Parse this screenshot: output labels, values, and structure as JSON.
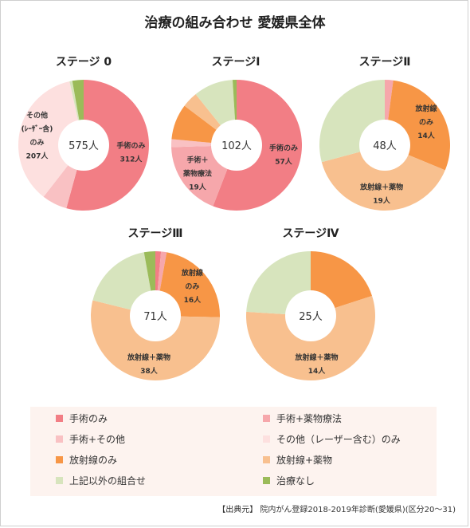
{
  "title": "治療の組み合わせ 愛媛県全体",
  "source": "【出典元】 院内がん登録2018-2019年診断(愛媛県)(区分20～31)",
  "legend": [
    {
      "label": "手術のみ",
      "color": "#f27e85"
    },
    {
      "label": "手術+薬物療法",
      "color": "#f6a7ab"
    },
    {
      "label": "手術+その他",
      "color": "#f9c1c3"
    },
    {
      "label": "その他（レーザー含む）のみ",
      "color": "#fde0df"
    },
    {
      "label": "放射線のみ",
      "color": "#f79646"
    },
    {
      "label": "放射線+薬物",
      "color": "#f8c08f"
    },
    {
      "label": "上記以外の組合せ",
      "color": "#d7e4bd"
    },
    {
      "label": "治療なし",
      "color": "#9bbb59"
    }
  ],
  "chart_data": [
    {
      "type": "pie",
      "title": "ステージ 0",
      "center_label": "575人",
      "slices": [
        {
          "category": "手術のみ",
          "value": 312,
          "label": [
            "手術のみ",
            "312人"
          ]
        },
        {
          "category": "手術+その他",
          "value": 36
        },
        {
          "category": "その他（レーザー含む）のみ",
          "value": 207,
          "label": [
            "その他",
            "(ﾚｰｻﾞｰ含)",
            "のみ",
            "207人"
          ]
        },
        {
          "category": "上記以外の組合せ",
          "value": 4
        },
        {
          "category": "治療なし",
          "value": 16
        }
      ]
    },
    {
      "type": "pie",
      "title": "ステージⅠ",
      "center_label": "102人",
      "slices": [
        {
          "category": "手術のみ",
          "value": 57,
          "label": [
            "手術のみ",
            "57人"
          ]
        },
        {
          "category": "手術+薬物療法",
          "value": 19,
          "label": [
            "手術＋",
            "薬物療法",
            "19人"
          ]
        },
        {
          "category": "手術+その他",
          "value": 2
        },
        {
          "category": "放射線のみ",
          "value": 9
        },
        {
          "category": "放射線+薬物",
          "value": 4
        },
        {
          "category": "上記以外の組合せ",
          "value": 10
        },
        {
          "category": "治療なし",
          "value": 1
        }
      ]
    },
    {
      "type": "pie",
      "title": "ステージⅡ",
      "center_label": "48人",
      "slices": [
        {
          "category": "手術+薬物療法",
          "value": 1
        },
        {
          "category": "放射線のみ",
          "value": 14,
          "label": [
            "放射線",
            "のみ",
            "14人"
          ]
        },
        {
          "category": "放射線+薬物",
          "value": 19,
          "label": [
            "放射線＋薬物",
            "19人"
          ]
        },
        {
          "category": "上記以外の組合せ",
          "value": 14
        }
      ]
    },
    {
      "type": "pie",
      "title": "ステージⅢ",
      "center_label": "71人",
      "slices": [
        {
          "category": "手術のみ",
          "value": 1
        },
        {
          "category": "手術+薬物療法",
          "value": 1
        },
        {
          "category": "放射線のみ",
          "value": 16,
          "label": [
            "放射線",
            "のみ",
            "16人"
          ]
        },
        {
          "category": "放射線+薬物",
          "value": 38,
          "label": [
            "放射線＋薬物",
            "38人"
          ]
        },
        {
          "category": "上記以外の組合せ",
          "value": 13
        },
        {
          "category": "治療なし",
          "value": 2
        }
      ]
    },
    {
      "type": "pie",
      "title": "ステージⅣ",
      "center_label": "25人",
      "slices": [
        {
          "category": "放射線のみ",
          "value": 5
        },
        {
          "category": "放射線+薬物",
          "value": 14,
          "label": [
            "放射線＋薬物",
            "14人"
          ]
        },
        {
          "category": "上記以外の組合せ",
          "value": 6
        }
      ]
    }
  ]
}
